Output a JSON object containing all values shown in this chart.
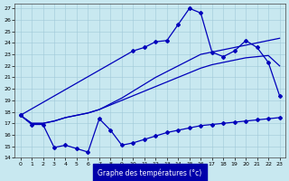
{
  "bg_color": "#c8e8f0",
  "grid_color": "#a0c8d8",
  "line_color": "#0000bb",
  "xlabel": "Graphe des températures (°c)",
  "xlabel_bg": "#0000aa",
  "xlabel_fg": "#ffffff",
  "xlim": [
    -0.5,
    23.5
  ],
  "ylim": [
    14,
    27.4
  ],
  "xticks": [
    0,
    1,
    2,
    3,
    4,
    5,
    6,
    7,
    8,
    9,
    10,
    11,
    12,
    13,
    14,
    15,
    16,
    17,
    18,
    19,
    20,
    21,
    22,
    23
  ],
  "yticks": [
    14,
    15,
    16,
    17,
    18,
    19,
    20,
    21,
    22,
    23,
    24,
    25,
    26,
    27
  ],
  "line_bottom": {
    "x": [
      0,
      1,
      2,
      3,
      4,
      5,
      6,
      7,
      8,
      9,
      10,
      11,
      12,
      13,
      14,
      15,
      16,
      17,
      18,
      19,
      20,
      21,
      22,
      23
    ],
    "y": [
      17.7,
      16.9,
      16.9,
      14.9,
      15.1,
      14.8,
      14.5,
      17.4,
      16.4,
      15.1,
      15.3,
      15.6,
      15.9,
      16.2,
      16.4,
      16.6,
      16.8,
      16.9,
      17.0,
      17.1,
      17.2,
      17.3,
      17.4,
      17.5
    ]
  },
  "line_mid_low": {
    "x": [
      0,
      1,
      2,
      3,
      4,
      5,
      6,
      7,
      8,
      9,
      10,
      11,
      12,
      13,
      14,
      15,
      16,
      17,
      18,
      19,
      20,
      21,
      22,
      23
    ],
    "y": [
      17.7,
      17.0,
      17.0,
      17.2,
      17.5,
      17.7,
      17.9,
      18.2,
      18.6,
      19.0,
      19.4,
      19.8,
      20.2,
      20.6,
      21.0,
      21.4,
      21.8,
      22.1,
      22.3,
      22.5,
      22.7,
      22.8,
      22.9,
      22.0
    ]
  },
  "line_mid_high": {
    "x": [
      0,
      1,
      2,
      3,
      4,
      5,
      6,
      7,
      8,
      9,
      10,
      11,
      12,
      13,
      14,
      15,
      16,
      17,
      18,
      19,
      20,
      21,
      22,
      23
    ],
    "y": [
      17.7,
      17.0,
      17.0,
      17.2,
      17.5,
      17.7,
      17.9,
      18.2,
      18.7,
      19.2,
      19.8,
      20.4,
      21.0,
      21.5,
      22.0,
      22.5,
      23.0,
      23.2,
      23.4,
      23.6,
      23.8,
      24.0,
      24.2,
      24.4
    ]
  },
  "line_top": {
    "x": [
      0,
      10,
      11,
      12,
      13,
      14,
      15,
      16,
      17,
      18,
      19,
      20,
      21,
      22,
      23
    ],
    "y": [
      17.7,
      23.3,
      23.6,
      24.1,
      24.2,
      25.6,
      27.0,
      26.6,
      23.2,
      22.8,
      23.3,
      24.2,
      23.6,
      22.3,
      19.4
    ]
  }
}
